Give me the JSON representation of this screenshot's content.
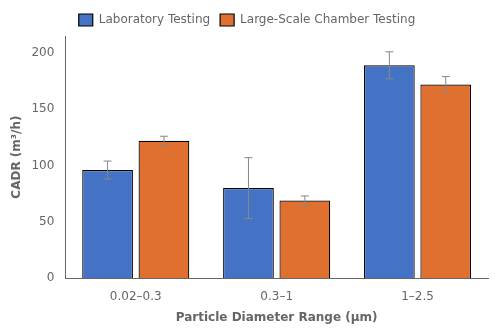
{
  "chart_data": {
    "type": "bar",
    "categories": [
      "0.02–0.3",
      "0.3–1",
      "1–2.5"
    ],
    "series": [
      {
        "name": "Laboratory Testing",
        "color": "#4472C4",
        "values": [
          96,
          80,
          189
        ],
        "errors": [
          8,
          27,
          12
        ]
      },
      {
        "name": "Large-Scale Chamber Testing",
        "color": "#E07030",
        "values": [
          122,
          69,
          172
        ],
        "errors": [
          4,
          4,
          7
        ]
      }
    ],
    "xlabel": "Particle Diameter Range (μm)",
    "ylabel": "CADR (m³/h)",
    "ylim": [
      0,
      215
    ],
    "yticks": [
      0,
      50,
      100,
      150,
      200
    ],
    "grid": false,
    "legend": "top"
  }
}
